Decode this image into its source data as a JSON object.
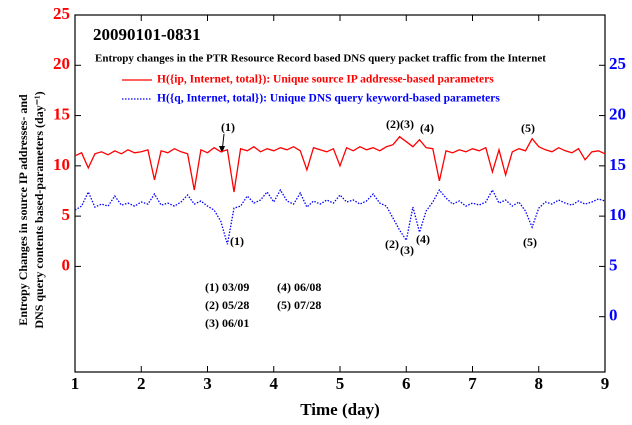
{
  "chart_data": {
    "type": "line",
    "title": "20090101-0831",
    "subtitle": "Entropy changes in the PTR Resource Record based DNS query packet traffic from the Internet",
    "xlabel": "Time (day)",
    "ylabel": [
      "Entropy Changes in source IP addresses- and",
      "DNS query contents based-parameters (day⁻¹)"
    ],
    "xlim": [
      1,
      9
    ],
    "xticks": [
      1,
      2,
      3,
      4,
      5,
      6,
      7,
      8,
      9
    ],
    "ylim": [
      -10.5,
      25
    ],
    "yticks": [
      0,
      5,
      10,
      15,
      20,
      25
    ],
    "y2lim": [
      -5.5,
      30
    ],
    "y2ticks": [
      0,
      5,
      10,
      15,
      20,
      25
    ],
    "x": [
      1.0,
      1.1,
      1.2,
      1.3,
      1.4,
      1.5,
      1.6,
      1.7,
      1.8,
      1.9,
      2.0,
      2.1,
      2.2,
      2.3,
      2.4,
      2.5,
      2.6,
      2.7,
      2.8,
      2.9,
      3.0,
      3.1,
      3.2,
      3.3,
      3.4,
      3.5,
      3.6,
      3.7,
      3.8,
      3.9,
      4.0,
      4.1,
      4.2,
      4.3,
      4.4,
      4.5,
      4.6,
      4.7,
      4.8,
      4.9,
      5.0,
      5.1,
      5.2,
      5.3,
      5.4,
      5.5,
      5.6,
      5.7,
      5.8,
      5.9,
      6.0,
      6.1,
      6.2,
      6.3,
      6.4,
      6.5,
      6.6,
      6.7,
      6.8,
      6.9,
      7.0,
      7.1,
      7.2,
      7.3,
      7.4,
      7.5,
      7.6,
      7.7,
      7.8,
      7.9,
      8.0,
      8.1,
      8.2,
      8.3,
      8.4,
      8.5,
      8.6,
      8.7,
      8.8,
      8.9,
      9.0
    ],
    "series": [
      {
        "name": "H({ip, Internet, total}): Unique source IP addresse-based parameters",
        "color": "#ff0000",
        "style": "solid",
        "values": [
          11.0,
          11.3,
          9.8,
          11.2,
          11.4,
          11.1,
          11.5,
          11.2,
          11.6,
          11.3,
          11.4,
          11.6,
          8.6,
          11.5,
          11.3,
          11.7,
          11.4,
          11.2,
          7.6,
          11.6,
          11.3,
          11.8,
          11.4,
          11.6,
          7.4,
          11.7,
          11.5,
          11.9,
          11.4,
          11.7,
          11.5,
          11.8,
          11.6,
          11.9,
          11.5,
          9.6,
          11.8,
          11.6,
          11.4,
          11.7,
          10.0,
          11.8,
          11.5,
          11.9,
          11.6,
          11.8,
          11.5,
          11.9,
          12.1,
          12.9,
          12.4,
          11.9,
          12.6,
          11.8,
          11.7,
          8.5,
          11.5,
          11.3,
          11.6,
          11.4,
          11.7,
          11.5,
          11.8,
          9.4,
          11.6,
          9.1,
          11.4,
          11.7,
          11.5,
          12.7,
          11.9,
          11.6,
          11.4,
          11.8,
          11.5,
          11.3,
          11.7,
          10.6,
          11.4,
          11.5,
          11.2
        ]
      },
      {
        "name": "H({q, Internet, total}):  Unique DNS query keyword-based parameters",
        "color": "#0000ff",
        "style": "dotted",
        "axis": "y2",
        "values": [
          10.6,
          11.0,
          12.4,
          10.9,
          11.2,
          11.0,
          12.0,
          11.1,
          11.3,
          11.0,
          11.4,
          11.2,
          12.2,
          11.1,
          11.3,
          11.0,
          11.4,
          12.1,
          11.2,
          11.5,
          11.0,
          10.6,
          9.5,
          7.2,
          10.8,
          11.0,
          12.0,
          11.3,
          11.6,
          12.4,
          11.4,
          12.6,
          11.5,
          11.2,
          12.3,
          10.9,
          11.5,
          11.2,
          11.6,
          11.3,
          12.1,
          11.4,
          11.6,
          11.2,
          11.5,
          12.2,
          11.3,
          11.0,
          9.8,
          8.6,
          7.6,
          10.9,
          8.4,
          10.5,
          11.4,
          12.6,
          11.8,
          11.2,
          11.5,
          11.0,
          11.3,
          11.1,
          11.4,
          12.6,
          11.3,
          11.6,
          11.0,
          11.4,
          10.5,
          8.9,
          10.8,
          11.4,
          11.2,
          11.6,
          11.3,
          11.1,
          11.5,
          11.2,
          11.4,
          11.7,
          11.5
        ]
      }
    ],
    "annotations": [
      "(1)",
      "(2)(3)",
      "(4)",
      "(5)",
      "(1)",
      "(2)",
      "(3)",
      "(4)",
      "(5)"
    ],
    "date_notes": [
      "(1) 03/09",
      "(4) 06/08",
      "(2) 05/28",
      "(5) 07/28",
      "(3) 06/01"
    ]
  }
}
